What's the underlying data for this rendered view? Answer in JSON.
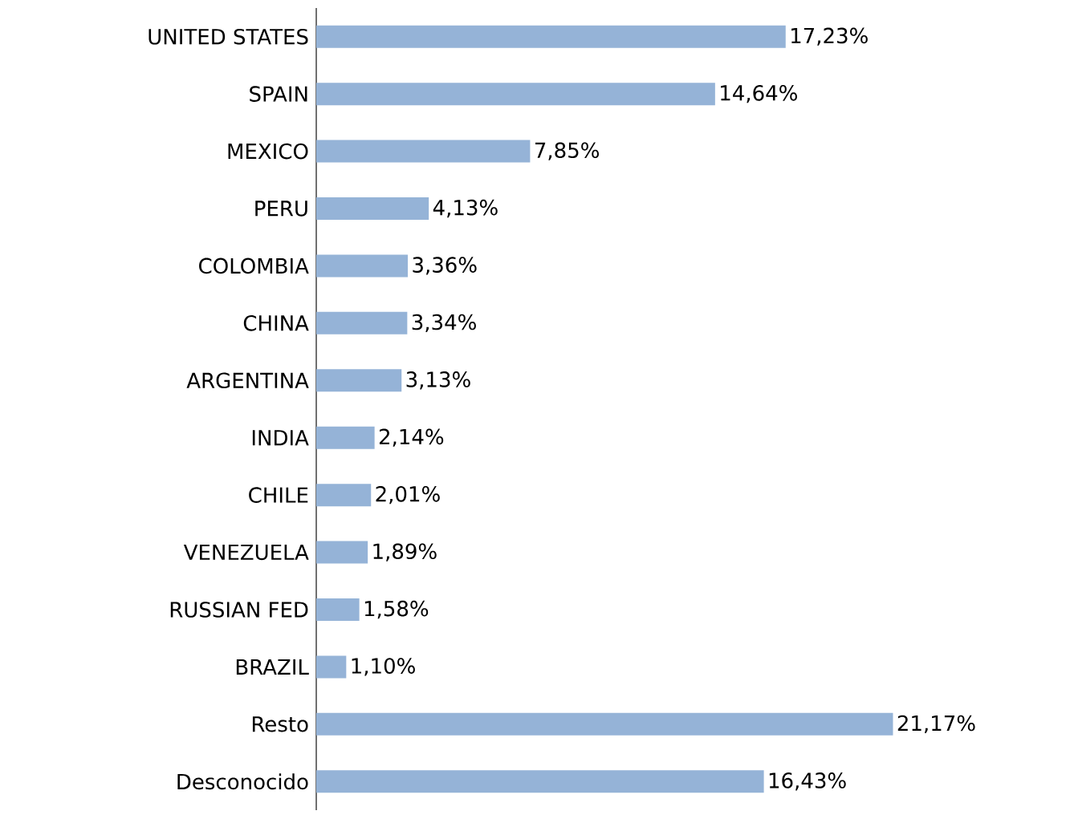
{
  "chart_data": {
    "type": "bar",
    "orientation": "horizontal",
    "color": "#95b3d7",
    "categories": [
      "UNITED STATES",
      "SPAIN",
      "MEXICO",
      "PERU",
      "COLOMBIA",
      "CHINA",
      "ARGENTINA",
      "INDIA",
      "CHILE",
      "VENEZUELA",
      "RUSSIAN FED",
      "BRAZIL",
      "Resto",
      "Desconocido"
    ],
    "values": [
      17.23,
      14.64,
      7.85,
      4.13,
      3.36,
      3.34,
      3.13,
      2.14,
      2.01,
      1.89,
      1.58,
      1.1,
      21.17,
      16.43
    ],
    "value_labels": [
      "17,23%",
      "14,64%",
      "7,85%",
      "4,13%",
      "3,36%",
      "3,34%",
      "3,13%",
      "2,14%",
      "2,01%",
      "1,89%",
      "1,58%",
      "1,10%",
      "21,17%",
      "16,43%"
    ]
  }
}
